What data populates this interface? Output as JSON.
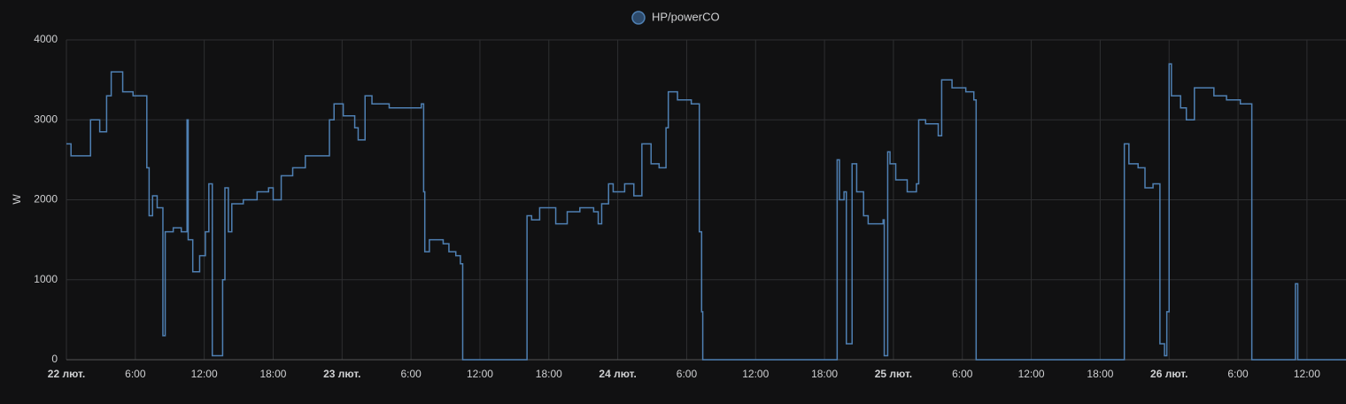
{
  "chart_data": {
    "type": "line",
    "step": true,
    "series": [
      {
        "name": "HP/powerCO",
        "color": "#4f80b3",
        "x": [
          0,
          0.4,
          2.1,
          2.9,
          3.5,
          3.9,
          4.9,
          5.8,
          6.6,
          7.0,
          7.2,
          7.5,
          7.9,
          8.4,
          8.6,
          9.3,
          10.0,
          10.5,
          10.6,
          11.0,
          11.6,
          12.1,
          12.4,
          12.7,
          13.6,
          13.8,
          14.1,
          14.4,
          15.4,
          16.6,
          17.6,
          18.0,
          18.7,
          19.7,
          20.8,
          22.0,
          22.9,
          23.3,
          24.1,
          25.1,
          25.4,
          26.0,
          26.6,
          28.1,
          30.5,
          30.9,
          31.1,
          31.2,
          31.6,
          32.8,
          33.3,
          33.9,
          34.3,
          34.5,
          40.1,
          40.5,
          41.2,
          42.4,
          42.6,
          43.6,
          44.7,
          45.9,
          46.3,
          46.6,
          47.2,
          47.6,
          48.6,
          49.4,
          50.1,
          50.9,
          51.6,
          52.2,
          52.4,
          53.2,
          54.4,
          55.0,
          55.1,
          55.3,
          55.4,
          67.1,
          67.3,
          67.7,
          67.9,
          68.4,
          68.8,
          69.4,
          69.8,
          71.1,
          71.2,
          71.5,
          71.7,
          72.2,
          73.2,
          74.0,
          74.2,
          74.8,
          75.9,
          76.2,
          77.1,
          78.3,
          79.0,
          79.2,
          92.1,
          92.5,
          93.3,
          93.9,
          94.6,
          95.1,
          95.2,
          95.6,
          95.8,
          96.0,
          96.2,
          97.0,
          97.5,
          98.2,
          99.1,
          99.9,
          101.0,
          102.2,
          103.1,
          103.2,
          107.0,
          107.2,
          111.4
        ],
        "values": [
          2700,
          2550,
          3000,
          2850,
          3300,
          3600,
          3350,
          3300,
          3300,
          2400,
          1800,
          2050,
          1900,
          300,
          1600,
          1650,
          1600,
          3000,
          1500,
          1100,
          1300,
          1600,
          2200,
          50,
          1000,
          2150,
          1600,
          1950,
          2000,
          2100,
          2150,
          2000,
          2300,
          2400,
          2550,
          2550,
          3000,
          3200,
          3050,
          2900,
          2750,
          3300,
          3200,
          3150,
          3150,
          3200,
          2100,
          1350,
          1500,
          1450,
          1350,
          1300,
          1200,
          0,
          1800,
          1750,
          1900,
          1900,
          1700,
          1850,
          1900,
          1850,
          1700,
          1950,
          2200,
          2100,
          2200,
          2050,
          2700,
          2450,
          2400,
          2900,
          3350,
          3250,
          3200,
          3200,
          1600,
          600,
          0,
          2500,
          2000,
          2100,
          200,
          2450,
          2100,
          1800,
          1700,
          1750,
          50,
          2600,
          2450,
          2250,
          2100,
          2200,
          3000,
          2950,
          2800,
          3500,
          3400,
          3350,
          3250,
          0,
          2700,
          2450,
          2400,
          2150,
          2200,
          2200,
          200,
          50,
          600,
          3700,
          3300,
          3150,
          3000,
          3400,
          3400,
          3300,
          3250,
          3200,
          3200,
          0,
          950,
          0,
          0
        ]
      }
    ],
    "ylabel": "W",
    "xlim": [
      0,
      111.4
    ],
    "xticks": [
      {
        "value": 0,
        "label": "22 лют."
      },
      {
        "value": 6,
        "label": "6:00"
      },
      {
        "value": 12,
        "label": "12:00"
      },
      {
        "value": 18,
        "label": "18:00"
      },
      {
        "value": 24,
        "label": "23 лют."
      },
      {
        "value": 30,
        "label": "6:00"
      },
      {
        "value": 36,
        "label": "12:00"
      },
      {
        "value": 42,
        "label": "18:00"
      },
      {
        "value": 48,
        "label": "24 лют."
      },
      {
        "value": 54,
        "label": "6:00"
      },
      {
        "value": 60,
        "label": "12:00"
      },
      {
        "value": 66,
        "label": "18:00"
      },
      {
        "value": 72,
        "label": "25 лют."
      },
      {
        "value": 78,
        "label": "6:00"
      },
      {
        "value": 84,
        "label": "12:00"
      },
      {
        "value": 90,
        "label": "18:00"
      },
      {
        "value": 96,
        "label": "26 лют."
      },
      {
        "value": 102,
        "label": "6:00"
      },
      {
        "value": 108,
        "label": "12:00"
      }
    ],
    "ylim": [
      0,
      4000
    ],
    "yticks": [
      0,
      1000,
      2000,
      3000,
      4000
    ],
    "grid": true
  }
}
